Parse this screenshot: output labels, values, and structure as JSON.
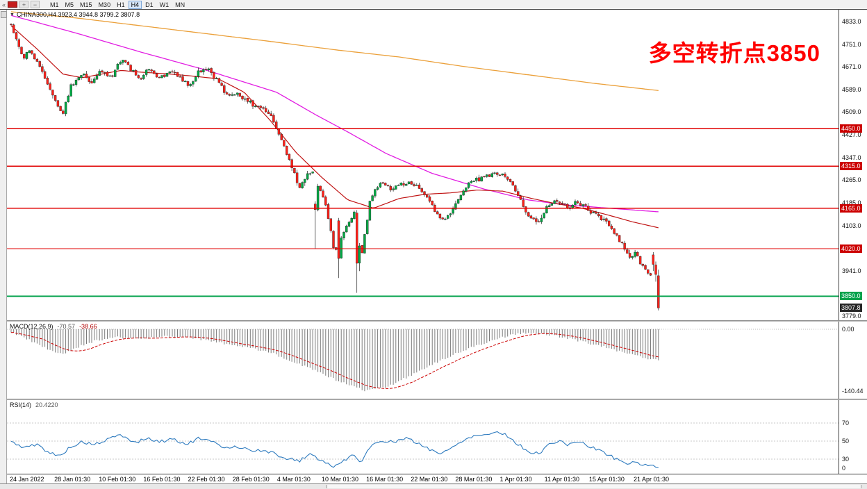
{
  "toolbar": {
    "collapse_icon": "«",
    "zoom_in_icon": "+",
    "zoom_out_icon": "−",
    "timeframes": [
      "M1",
      "M5",
      "M15",
      "M30",
      "H1",
      "H4",
      "D1",
      "W1",
      "MN"
    ],
    "active_timeframe": "H4"
  },
  "chart": {
    "dropdown_icon": "▼",
    "title": "CHINA300,H4 3923.4 3944.8 3799.2 3807.8",
    "annotation_text": "多空转折点3850"
  },
  "indicators": {
    "macd": {
      "name": "MACD(12,26,9)",
      "value_main": "-70.57",
      "value_signal": "-38.66"
    },
    "rsi": {
      "name": "RSI(14)",
      "value": "20.4220"
    }
  },
  "chart_data": {
    "type": "candlestick",
    "symbol": "CHINA300",
    "timeframe": "H4",
    "candle_count": 250,
    "last_candle_ohlc": [
      3923.4,
      3944.8,
      3799.2,
      3807.8
    ],
    "forced_candles": {
      "117": [
        4180,
        4190,
        4020,
        4160
      ],
      "126": [
        4120,
        4130,
        3915,
        3985
      ],
      "133": [
        4148,
        4158,
        3862,
        3968
      ],
      "134": [
        3968,
        4040,
        3940,
        4030
      ],
      "247": [
        3998,
        4008,
        3940,
        3964
      ],
      "248": [
        3962,
        3974,
        3902,
        3928
      ],
      "249": [
        3923.4,
        3944.8,
        3799.2,
        3807.8
      ]
    },
    "price_axis": {
      "ticks": [
        4833,
        4751,
        4671,
        4589,
        4509,
        4427,
        4347,
        4265,
        4185,
        4103,
        3941,
        3779
      ],
      "decimals": 1
    },
    "level_boxes": [
      {
        "text": "4450.0",
        "value": 4450,
        "bg": "#cc0000"
      },
      {
        "text": "4315.0",
        "value": 4315,
        "bg": "#cc0000"
      },
      {
        "text": "4165.0",
        "value": 4165,
        "bg": "#cc0000"
      },
      {
        "text": "4020.0",
        "value": 4020,
        "bg": "#cc0000"
      },
      {
        "text": "3850.0",
        "value": 3850,
        "bg": "#00a14b"
      },
      {
        "text": "3807.8",
        "value": 3807.8,
        "bg": "#262626"
      }
    ],
    "h_levels": [
      {
        "value": 4450,
        "color": "#e00000",
        "width": 1.4
      },
      {
        "value": 4315,
        "color": "#e00000",
        "width": 1.4
      },
      {
        "value": 4165,
        "color": "#e00000",
        "width": 1.4
      },
      {
        "value": 4020,
        "color": "#e00000",
        "width": 1.4
      },
      {
        "value": 3850,
        "color": "#00a14b",
        "width": 2
      }
    ],
    "close_path": [
      [
        0,
        4825
      ],
      [
        0.008,
        4770
      ],
      [
        0.018,
        4705
      ],
      [
        0.03,
        4730
      ],
      [
        0.045,
        4665
      ],
      [
        0.06,
        4590
      ],
      [
        0.072,
        4540
      ],
      [
        0.08,
        4505
      ],
      [
        0.092,
        4605
      ],
      [
        0.11,
        4650
      ],
      [
        0.125,
        4615
      ],
      [
        0.14,
        4655
      ],
      [
        0.155,
        4635
      ],
      [
        0.17,
        4700
      ],
      [
        0.185,
        4660
      ],
      [
        0.2,
        4630
      ],
      [
        0.215,
        4668
      ],
      [
        0.23,
        4628
      ],
      [
        0.245,
        4652
      ],
      [
        0.26,
        4635
      ],
      [
        0.275,
        4605
      ],
      [
        0.29,
        4652
      ],
      [
        0.305,
        4660
      ],
      [
        0.32,
        4615
      ],
      [
        0.335,
        4565
      ],
      [
        0.35,
        4575
      ],
      [
        0.365,
        4545
      ],
      [
        0.385,
        4525
      ],
      [
        0.4,
        4500
      ],
      [
        0.415,
        4430
      ],
      [
        0.43,
        4330
      ],
      [
        0.445,
        4240
      ],
      [
        0.455,
        4275
      ],
      [
        0.465,
        4305
      ],
      [
        0.475,
        4235
      ],
      [
        0.487,
        4175
      ],
      [
        0.5,
        3998
      ],
      [
        0.515,
        4085
      ],
      [
        0.53,
        4150
      ],
      [
        0.54,
        3972
      ],
      [
        0.555,
        4195
      ],
      [
        0.57,
        4260
      ],
      [
        0.585,
        4232
      ],
      [
        0.6,
        4248
      ],
      [
        0.615,
        4258
      ],
      [
        0.63,
        4240
      ],
      [
        0.65,
        4180
      ],
      [
        0.665,
        4120
      ],
      [
        0.68,
        4152
      ],
      [
        0.7,
        4235
      ],
      [
        0.715,
        4268
      ],
      [
        0.73,
        4272
      ],
      [
        0.75,
        4292
      ],
      [
        0.765,
        4278
      ],
      [
        0.78,
        4230
      ],
      [
        0.8,
        4130
      ],
      [
        0.815,
        4112
      ],
      [
        0.83,
        4175
      ],
      [
        0.845,
        4192
      ],
      [
        0.86,
        4170
      ],
      [
        0.875,
        4186
      ],
      [
        0.89,
        4162
      ],
      [
        0.9,
        4146
      ],
      [
        0.915,
        4122
      ],
      [
        0.93,
        4082
      ],
      [
        0.945,
        4035
      ],
      [
        0.955,
        3992
      ],
      [
        0.965,
        4006
      ],
      [
        0.975,
        3956
      ],
      [
        0.985,
        3930
      ],
      [
        1,
        3920
      ]
    ],
    "ma_fast": [
      [
        0,
        4818
      ],
      [
        0.04,
        4735
      ],
      [
        0.08,
        4645
      ],
      [
        0.11,
        4632
      ],
      [
        0.14,
        4645
      ],
      [
        0.17,
        4658
      ],
      [
        0.2,
        4652
      ],
      [
        0.24,
        4646
      ],
      [
        0.28,
        4638
      ],
      [
        0.32,
        4628
      ],
      [
        0.36,
        4580
      ],
      [
        0.4,
        4480
      ],
      [
        0.44,
        4365
      ],
      [
        0.48,
        4275
      ],
      [
        0.52,
        4195
      ],
      [
        0.56,
        4165
      ],
      [
        0.6,
        4200
      ],
      [
        0.64,
        4215
      ],
      [
        0.68,
        4220
      ],
      [
        0.72,
        4230
      ],
      [
        0.76,
        4226
      ],
      [
        0.8,
        4202
      ],
      [
        0.84,
        4182
      ],
      [
        0.88,
        4166
      ],
      [
        0.92,
        4142
      ],
      [
        0.96,
        4116
      ],
      [
        1,
        4095
      ]
    ],
    "ma_mid": [
      [
        0,
        4855
      ],
      [
        0.1,
        4792
      ],
      [
        0.2,
        4724
      ],
      [
        0.3,
        4660
      ],
      [
        0.41,
        4580
      ],
      [
        0.47,
        4500
      ],
      [
        0.52,
        4438
      ],
      [
        0.58,
        4360
      ],
      [
        0.65,
        4290
      ],
      [
        0.73,
        4234
      ],
      [
        0.8,
        4194
      ],
      [
        0.86,
        4176
      ],
      [
        0.93,
        4164
      ],
      [
        1,
        4152
      ]
    ],
    "ma_slow": [
      [
        0,
        4868
      ],
      [
        0.1,
        4846
      ],
      [
        0.2,
        4818
      ],
      [
        0.3,
        4790
      ],
      [
        0.4,
        4762
      ],
      [
        0.5,
        4732
      ],
      [
        0.6,
        4706
      ],
      [
        0.7,
        4672
      ],
      [
        0.8,
        4642
      ],
      [
        0.9,
        4612
      ],
      [
        1,
        4586
      ]
    ],
    "colors": {
      "up": "#00a843",
      "down": "#ff2019",
      "wick": "#222222",
      "ma_fast": "#c01414",
      "ma_mid": "#e21ee2",
      "ma_slow": "#eba03a",
      "macd_hist": "#7a7a7a",
      "macd_signal": "#cc0000",
      "rsi": "#2e7bbf"
    },
    "x_labels": [
      "24 Jan 2022",
      "28 Jan 01:30",
      "10 Feb 01:30",
      "16 Feb 01:30",
      "22 Feb 01:30",
      "28 Feb 01:30",
      "4 Mar 01:30",
      "10 Mar 01:30",
      "16 Mar 01:30",
      "22 Mar 01:30",
      "28 Mar 01:30",
      "1 Apr 01:30",
      "11 Apr 01:30",
      "15 Apr 01:30",
      "21 Apr 01:30"
    ],
    "macd": {
      "label": "MACD(12,26,9)",
      "last_main": -70.57,
      "last_signal": -38.66,
      "scale": [
        {
          "text": "0.00",
          "value": 0
        },
        {
          "text": "-140.44",
          "value": -140.44
        }
      ],
      "hist_path": [
        [
          0,
          -6
        ],
        [
          0.03,
          -26
        ],
        [
          0.06,
          -48
        ],
        [
          0.08,
          -58
        ],
        [
          0.1,
          -42
        ],
        [
          0.13,
          -26
        ],
        [
          0.16,
          -18
        ],
        [
          0.2,
          -22
        ],
        [
          0.24,
          -17
        ],
        [
          0.28,
          -20
        ],
        [
          0.32,
          -30
        ],
        [
          0.36,
          -40
        ],
        [
          0.4,
          -52
        ],
        [
          0.43,
          -70
        ],
        [
          0.46,
          -88
        ],
        [
          0.49,
          -108
        ],
        [
          0.52,
          -126
        ],
        [
          0.55,
          -140
        ],
        [
          0.58,
          -132
        ],
        [
          0.61,
          -110
        ],
        [
          0.64,
          -88
        ],
        [
          0.67,
          -66
        ],
        [
          0.7,
          -48
        ],
        [
          0.73,
          -32
        ],
        [
          0.76,
          -18
        ],
        [
          0.79,
          -8
        ],
        [
          0.82,
          -11
        ],
        [
          0.85,
          -17
        ],
        [
          0.88,
          -27
        ],
        [
          0.91,
          -38
        ],
        [
          0.94,
          -50
        ],
        [
          0.97,
          -62
        ],
        [
          1,
          -70.57
        ]
      ]
    },
    "rsi": {
      "label": "RSI(14)",
      "last": 20.42,
      "levels": [
        70,
        50,
        30
      ],
      "scale": [
        {
          "text": "70",
          "value": 70
        },
        {
          "text": "50",
          "value": 50
        },
        {
          "text": "30",
          "value": 30
        },
        {
          "text": "0",
          "value": 0
        }
      ],
      "path": [
        [
          0,
          49
        ],
        [
          0.02,
          43
        ],
        [
          0.04,
          46
        ],
        [
          0.06,
          37
        ],
        [
          0.075,
          33
        ],
        [
          0.09,
          43
        ],
        [
          0.11,
          49
        ],
        [
          0.13,
          46
        ],
        [
          0.15,
          52
        ],
        [
          0.17,
          57
        ],
        [
          0.19,
          48
        ],
        [
          0.21,
          53
        ],
        [
          0.23,
          49
        ],
        [
          0.25,
          53
        ],
        [
          0.27,
          46
        ],
        [
          0.29,
          53
        ],
        [
          0.31,
          49
        ],
        [
          0.33,
          43
        ],
        [
          0.35,
          44
        ],
        [
          0.37,
          40
        ],
        [
          0.4,
          38
        ],
        [
          0.42,
          32
        ],
        [
          0.445,
          28
        ],
        [
          0.455,
          33
        ],
        [
          0.465,
          36
        ],
        [
          0.475,
          30
        ],
        [
          0.49,
          25
        ],
        [
          0.5,
          21
        ],
        [
          0.515,
          29
        ],
        [
          0.53,
          36
        ],
        [
          0.54,
          26
        ],
        [
          0.555,
          43
        ],
        [
          0.57,
          51
        ],
        [
          0.59,
          49
        ],
        [
          0.61,
          53
        ],
        [
          0.63,
          47
        ],
        [
          0.65,
          40
        ],
        [
          0.665,
          36
        ],
        [
          0.68,
          42
        ],
        [
          0.7,
          52
        ],
        [
          0.715,
          56
        ],
        [
          0.73,
          57
        ],
        [
          0.75,
          60
        ],
        [
          0.765,
          57
        ],
        [
          0.78,
          48
        ],
        [
          0.8,
          38
        ],
        [
          0.815,
          36
        ],
        [
          0.83,
          46
        ],
        [
          0.845,
          50
        ],
        [
          0.86,
          46
        ],
        [
          0.875,
          50
        ],
        [
          0.89,
          45
        ],
        [
          0.9,
          42
        ],
        [
          0.915,
          38
        ],
        [
          0.93,
          32
        ],
        [
          0.945,
          27
        ],
        [
          0.955,
          24
        ],
        [
          0.965,
          28
        ],
        [
          0.975,
          24
        ],
        [
          1,
          20.42
        ]
      ]
    }
  }
}
